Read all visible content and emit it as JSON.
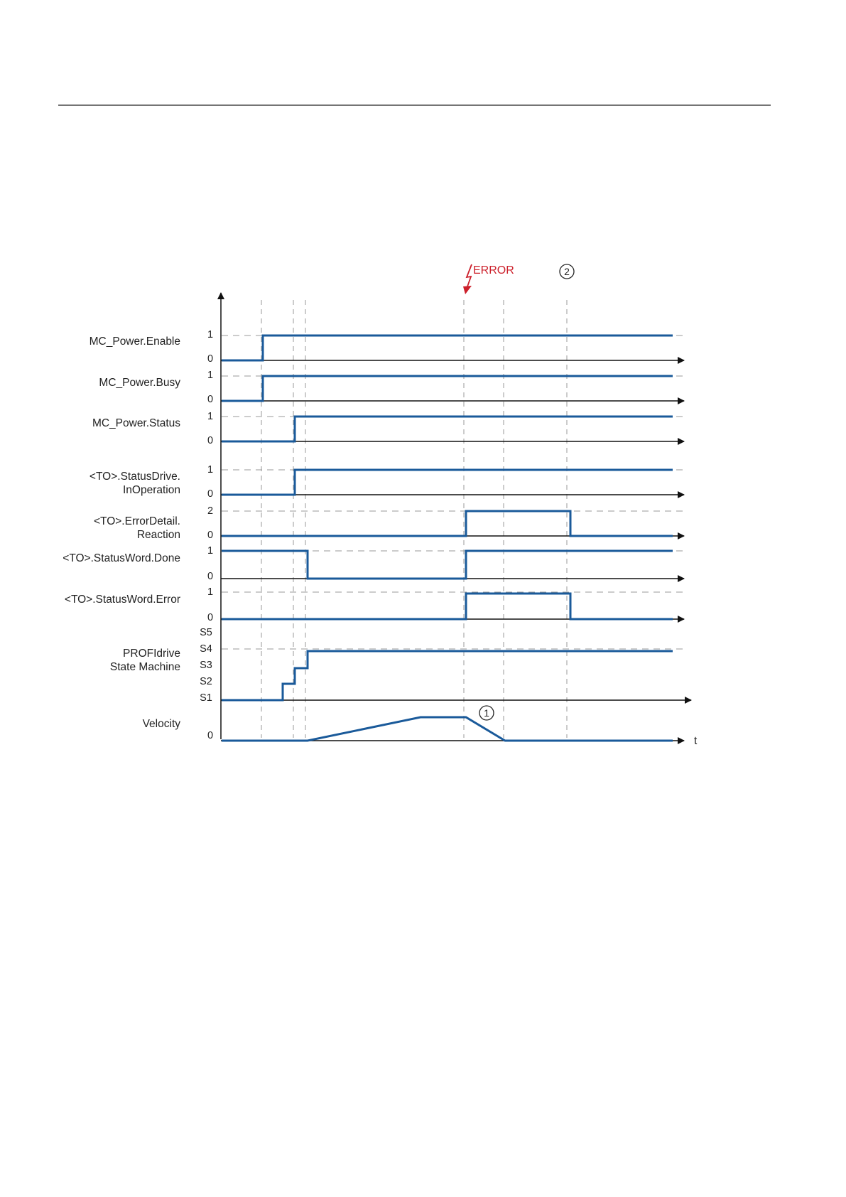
{
  "colors": {
    "signal": "#1a5a9a",
    "axis": "#111111",
    "guide": "#9a9a9a",
    "text": "#222222",
    "error": "#cc1f2a",
    "header_rule": "#222222"
  },
  "error_marker": {
    "label": "ERROR",
    "icon": "lightning-bolt-icon"
  },
  "markers": [
    {
      "id": "marker-1",
      "label": "1"
    },
    {
      "id": "marker-2",
      "label": "2"
    }
  ],
  "time_axis_label": "t",
  "signals": [
    {
      "label_lines": [
        "MC_Power.Enable"
      ],
      "levels": [
        "1",
        "0"
      ]
    },
    {
      "label_lines": [
        "MC_Power.Busy"
      ],
      "levels": [
        "1",
        "0"
      ]
    },
    {
      "label_lines": [
        "MC_Power.Status"
      ],
      "levels": [
        "1",
        "0"
      ]
    },
    {
      "label_lines": [
        "<TO>.StatusDrive.",
        "InOperation"
      ],
      "levels": [
        "1",
        "0"
      ]
    },
    {
      "label_lines": [
        "<TO>.ErrorDetail.",
        "Reaction"
      ],
      "levels": [
        "2",
        "0"
      ]
    },
    {
      "label_lines": [
        "<TO>.StatusWord.Done"
      ],
      "levels": [
        "1",
        "0"
      ]
    },
    {
      "label_lines": [
        "<TO>.StatusWord.Error"
      ],
      "levels": [
        "1",
        "0"
      ]
    },
    {
      "label_lines": [
        "PROFIdrive",
        "State Machine"
      ],
      "levels": [
        "S5",
        "S4",
        "S3",
        "S2",
        "S1"
      ]
    },
    {
      "label_lines": [
        "Velocity"
      ],
      "levels": [
        "0"
      ]
    }
  ]
}
